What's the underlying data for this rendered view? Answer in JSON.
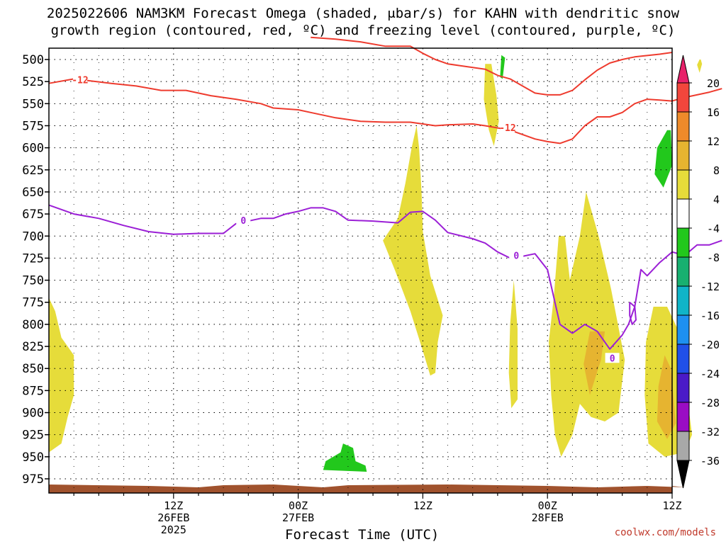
{
  "title_line1": "2025022606 NAM3KM Forecast Omega (shaded, μbar/s) for KAHN with dendritic snow",
  "title_line2": "growth region (contoured, red, ºC) and freezing level (contoured, purple, ºC)",
  "credit": "coolwx.com/models",
  "chart_data": {
    "type": "time-height cross section",
    "xlabel": "Forecast Time (UTC)",
    "ylabel": "",
    "x_range_hours": [
      -4,
      46
    ],
    "y_axis_pressure_ticks": [
      500,
      525,
      550,
      575,
      600,
      625,
      650,
      675,
      700,
      725,
      750,
      775,
      800,
      825,
      850,
      875,
      900,
      925,
      950,
      975
    ],
    "x_ticks": [
      {
        "hour": 6,
        "lines": [
          "12Z",
          "26FEB",
          "2025"
        ]
      },
      {
        "hour": 16,
        "lines": [
          "00Z",
          "27FEB"
        ]
      },
      {
        "hour": 26,
        "lines": [
          "12Z"
        ]
      },
      {
        "hour": 36,
        "lines": [
          "00Z",
          "28FEB"
        ]
      },
      {
        "hour": 46,
        "lines": [
          "12Z"
        ]
      }
    ],
    "colorbar": {
      "labels": [
        "20",
        "16",
        "12",
        "8",
        "4",
        "-4",
        "-8",
        "-12",
        "-16",
        "-20",
        "-24",
        "-28",
        "-32",
        "-36"
      ],
      "bands": [
        "#e8226a",
        "#f2463c",
        "#ee8a2a",
        "#e6b430",
        "#e6dc3a",
        "#ffffff",
        "#22c81c",
        "#18b070",
        "#10b4c8",
        "#1e90f0",
        "#2050e8",
        "#4a1ac8",
        "#9a0cc4",
        "#a8a8a8",
        "#000000"
      ]
    },
    "contours": [
      {
        "field": "temperature",
        "level": -12,
        "label": "-12",
        "color": "#ee3b2e",
        "segments": [
          [
            [
              -4,
              527
            ],
            [
              -2,
              522
            ],
            [
              1,
              527
            ],
            [
              3,
              530
            ],
            [
              5,
              535
            ],
            [
              7,
              535
            ],
            [
              9,
              541
            ],
            [
              11,
              545
            ],
            [
              13,
              550
            ],
            [
              14,
              555
            ],
            [
              16,
              557
            ],
            [
              17,
              560
            ],
            [
              19,
              566
            ],
            [
              21,
              570
            ],
            [
              23,
              571
            ],
            [
              25,
              571
            ],
            [
              26,
              573
            ],
            [
              27,
              575
            ],
            [
              28,
              574
            ],
            [
              30,
              573
            ],
            [
              31,
              575
            ],
            [
              33,
              580
            ],
            [
              34,
              585
            ],
            [
              35,
              590
            ],
            [
              36,
              593
            ],
            [
              37,
              595
            ],
            [
              38,
              590
            ],
            [
              39,
              575
            ],
            [
              40,
              565
            ],
            [
              41,
              565
            ],
            [
              42,
              560
            ],
            [
              43,
              550
            ],
            [
              44,
              545
            ],
            [
              45,
              546
            ],
            [
              46,
              547
            ],
            [
              47,
              543
            ],
            [
              49,
              537
            ],
            [
              50,
              533
            ]
          ],
          [
            [
              17,
              475
            ],
            [
              19,
              477
            ],
            [
              21,
              480
            ],
            [
              23,
              485
            ],
            [
              25,
              485
            ],
            [
              26,
              493
            ],
            [
              27,
              500
            ],
            [
              28,
              505
            ],
            [
              29,
              507
            ],
            [
              31,
              511
            ],
            [
              32,
              518
            ],
            [
              33,
              522
            ],
            [
              34,
              530
            ],
            [
              35,
              538
            ],
            [
              36,
              540
            ],
            [
              37,
              540
            ],
            [
              38,
              535
            ],
            [
              39,
              523
            ],
            [
              40,
              512
            ],
            [
              41,
              504
            ],
            [
              42,
              500
            ],
            [
              43,
              497
            ],
            [
              45,
              494
            ],
            [
              46,
              492
            ]
          ]
        ]
      },
      {
        "field": "temperature",
        "level": 0,
        "label": "0",
        "color": "#9b1fd6",
        "segments": [
          [
            [
              -4,
              665
            ],
            [
              -2,
              675
            ],
            [
              0,
              680
            ],
            [
              2,
              688
            ],
            [
              4,
              695
            ],
            [
              6,
              698
            ],
            [
              8,
              697
            ],
            [
              10,
              697
            ],
            [
              11,
              686
            ],
            [
              13,
              680
            ],
            [
              14,
              680
            ],
            [
              15,
              675
            ],
            [
              16,
              672
            ],
            [
              17,
              668
            ],
            [
              18,
              668
            ],
            [
              19,
              672
            ],
            [
              20,
              682
            ],
            [
              22,
              683
            ],
            [
              24,
              685
            ],
            [
              25,
              673
            ],
            [
              26,
              672
            ],
            [
              27,
              682
            ],
            [
              28,
              696
            ],
            [
              30,
              703
            ],
            [
              31,
              708
            ],
            [
              32,
              718
            ],
            [
              33,
              725
            ],
            [
              34,
              723
            ],
            [
              35,
              720
            ],
            [
              36,
              738
            ],
            [
              37,
              800
            ],
            [
              38,
              810
            ],
            [
              39,
              800
            ],
            [
              40,
              808
            ],
            [
              41,
              828
            ],
            [
              42,
              812
            ],
            [
              42.5,
              800
            ],
            [
              43,
              780
            ],
            [
              43.5,
              738
            ],
            [
              44,
              745
            ],
            [
              45,
              730
            ],
            [
              46,
              718
            ],
            [
              47,
              722
            ],
            [
              48,
              710
            ],
            [
              49,
              710
            ],
            [
              50,
              705
            ]
          ],
          [
            [
              42.6,
              775
            ],
            [
              43,
              780
            ],
            [
              43.1,
              795
            ],
            [
              42.8,
              800
            ],
            [
              42.6,
              790
            ],
            [
              42.6,
              775
            ]
          ]
        ]
      }
    ],
    "omega_regions": [
      {
        "band": "4 to 8",
        "color": "#e6dc3a",
        "polygon": [
          [
            -4,
            770
          ],
          [
            -3.5,
            785
          ],
          [
            -3,
            815
          ],
          [
            -2,
            835
          ],
          [
            -2,
            880
          ],
          [
            -2.5,
            905
          ],
          [
            -3,
            935
          ],
          [
            -4,
            945
          ]
        ]
      },
      {
        "band": "4 to 8",
        "color": "#e6dc3a",
        "polygon": [
          [
            31,
            505
          ],
          [
            30.9,
            545
          ],
          [
            31.3,
            580
          ],
          [
            31.7,
            598
          ],
          [
            32.1,
            570
          ],
          [
            31.9,
            540
          ],
          [
            31.5,
            505
          ]
        ]
      },
      {
        "band": "4 to 8",
        "color": "#e6dc3a",
        "polygon": [
          [
            25.5,
            575
          ],
          [
            25.1,
            600
          ],
          [
            24.6,
            640
          ],
          [
            24,
            680
          ],
          [
            22.8,
            705
          ],
          [
            23.8,
            740
          ],
          [
            25,
            785
          ],
          [
            26,
            830
          ],
          [
            26.6,
            858
          ],
          [
            27,
            855
          ],
          [
            27.2,
            820
          ],
          [
            27.6,
            790
          ],
          [
            26.6,
            745
          ],
          [
            26,
            695
          ],
          [
            25.9,
            650
          ],
          [
            25.7,
            600
          ]
        ]
      },
      {
        "band": "4 to 8",
        "color": "#e6dc3a",
        "polygon": [
          [
            36.9,
            700
          ],
          [
            36.5,
            770
          ],
          [
            36.1,
            820
          ],
          [
            36.3,
            880
          ],
          [
            36.6,
            925
          ],
          [
            37.1,
            950
          ],
          [
            38,
            925
          ],
          [
            38.6,
            890
          ],
          [
            39.5,
            905
          ],
          [
            40.6,
            910
          ],
          [
            41.7,
            900
          ],
          [
            42.2,
            840
          ],
          [
            41.1,
            760
          ],
          [
            40.1,
            700
          ],
          [
            39.1,
            650
          ],
          [
            38.6,
            700
          ],
          [
            37.8,
            750
          ],
          [
            37.4,
            700
          ]
        ]
      },
      {
        "band": "4 to 8",
        "color": "#e6dc3a",
        "polygon": [
          [
            33.3,
            750
          ],
          [
            33,
            800
          ],
          [
            32.9,
            855
          ],
          [
            33.1,
            895
          ],
          [
            33.6,
            885
          ],
          [
            33.6,
            805
          ],
          [
            33.3,
            750
          ]
        ]
      },
      {
        "band": "4 to 8",
        "color": "#e6dc3a",
        "polygon": [
          [
            44.5,
            780
          ],
          [
            43.9,
            820
          ],
          [
            43.8,
            880
          ],
          [
            44.1,
            935
          ],
          [
            45.4,
            950
          ],
          [
            47,
            945
          ],
          [
            47.6,
            925
          ],
          [
            47.1,
            870
          ],
          [
            46.6,
            810
          ],
          [
            45.6,
            780
          ]
        ]
      },
      {
        "band": "8 to 12",
        "color": "#e6b430",
        "polygon": [
          [
            39.4,
            808
          ],
          [
            38.9,
            845
          ],
          [
            39.4,
            880
          ],
          [
            40.3,
            840
          ],
          [
            40.6,
            808
          ]
        ]
      },
      {
        "band": "8 to 12",
        "color": "#e6b430",
        "polygon": [
          [
            45.4,
            835
          ],
          [
            44.9,
            870
          ],
          [
            44.8,
            910
          ],
          [
            45.6,
            930
          ],
          [
            46.3,
            912
          ],
          [
            45.9,
            850
          ]
        ]
      },
      {
        "band": "-4 to -8",
        "color": "#22c81c",
        "polygon": [
          [
            32.3,
            495
          ],
          [
            32.2,
            520
          ],
          [
            32.4,
            522
          ],
          [
            32.6,
            498
          ]
        ]
      },
      {
        "band": "-4 to -8",
        "color": "#22c81c",
        "polygon": [
          [
            45.6,
            580
          ],
          [
            44.8,
            600
          ],
          [
            44.6,
            630
          ],
          [
            45.3,
            645
          ],
          [
            46,
            620
          ],
          [
            45.9,
            580
          ]
        ]
      },
      {
        "band": "-4 to -8",
        "color": "#22c81c",
        "polygon": [
          [
            18,
            965
          ],
          [
            18.2,
            955
          ],
          [
            19.4,
            945
          ],
          [
            19.6,
            935
          ],
          [
            20.4,
            940
          ],
          [
            20.6,
            955
          ],
          [
            21.4,
            960
          ],
          [
            21.5,
            967
          ]
        ]
      },
      {
        "band": "4 to 8",
        "color": "#e6dc3a",
        "polygon": [
          [
            48.2,
            500
          ],
          [
            48,
            506
          ],
          [
            48.2,
            515
          ],
          [
            48.4,
            505
          ],
          [
            48.3,
            500
          ]
        ]
      }
    ]
  }
}
